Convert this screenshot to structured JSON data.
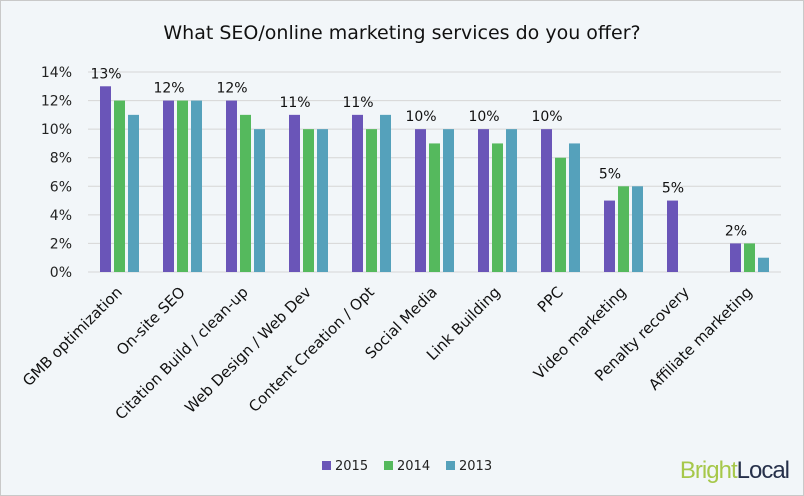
{
  "chart_data": {
    "type": "bar",
    "title": "What SEO/online marketing services do you offer?",
    "categories": [
      "GMB optimization",
      "On-site SEO",
      "Citation Build / clean-up",
      "Web Design / Web Dev",
      "Content Creation / Opt",
      "Social Media",
      "Link Building",
      "PPC",
      "Video marketing",
      "Penalty recovery",
      "Affiliate marketing"
    ],
    "series": [
      {
        "name": "2015",
        "color": "#6a55b8",
        "values": [
          13,
          12,
          12,
          11,
          11,
          10,
          10,
          10,
          5,
          5,
          2
        ]
      },
      {
        "name": "2014",
        "color": "#55b95d",
        "values": [
          12,
          12,
          11,
          10,
          10,
          9,
          9,
          8,
          6,
          null,
          2
        ]
      },
      {
        "name": "2013",
        "color": "#55a1bb",
        "values": [
          11,
          12,
          10,
          10,
          11,
          10,
          10,
          9,
          6,
          null,
          1
        ]
      }
    ],
    "data_labels": [
      "13%",
      "12%",
      "12%",
      "11%",
      "11%",
      "10%",
      "10%",
      "10%",
      "5%",
      "5%",
      "2%"
    ],
    "yticks": [
      "0%",
      "2%",
      "4%",
      "6%",
      "8%",
      "10%",
      "12%",
      "14%"
    ],
    "ylim": [
      0,
      14
    ],
    "grid": true,
    "legend": "bottom"
  },
  "logo": {
    "part1": "Bright",
    "part2": "Local"
  }
}
